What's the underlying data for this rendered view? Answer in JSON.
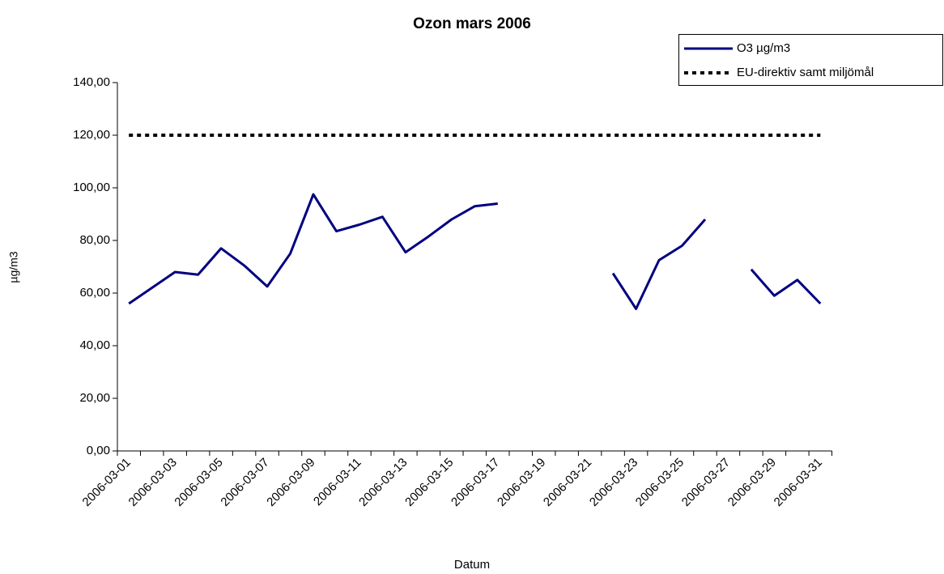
{
  "chart_data": {
    "type": "line",
    "title": "Ozon mars 2006",
    "xlabel": "Datum",
    "ylabel": "µg/m3",
    "categories": [
      "2006-03-01",
      null,
      "2006-03-03",
      null,
      "2006-03-05",
      null,
      "2006-03-07",
      null,
      "2006-03-09",
      null,
      "2006-03-11",
      null,
      "2006-03-13",
      null,
      "2006-03-15",
      null,
      "2006-03-17",
      null,
      "2006-03-19",
      null,
      "2006-03-21",
      null,
      "2006-03-23",
      null,
      "2006-03-25",
      null,
      "2006-03-27",
      null,
      "2006-03-29",
      null,
      "2006-03-31"
    ],
    "series": [
      {
        "name": "O3 µg/m3",
        "color": "#000080",
        "dash": "solid",
        "values": [
          56,
          62,
          68,
          67,
          77,
          70.5,
          62.5,
          75,
          97.5,
          83.5,
          86,
          89,
          75.5,
          81.5,
          88,
          93,
          94,
          null,
          null,
          null,
          null,
          67.5,
          54,
          72.5,
          78,
          88,
          null,
          69,
          59,
          65,
          56
        ]
      },
      {
        "name": "EU-direktiv samt miljömål",
        "color": "#000000",
        "dash": "dotted",
        "values": [
          120,
          120,
          120,
          120,
          120,
          120,
          120,
          120,
          120,
          120,
          120,
          120,
          120,
          120,
          120,
          120,
          120,
          120,
          120,
          120,
          120,
          120,
          120,
          120,
          120,
          120,
          120,
          120,
          120,
          120,
          120
        ]
      }
    ],
    "ylim": [
      0,
      140
    ],
    "yticks": [
      {
        "value": 0,
        "label": "0,00"
      },
      {
        "value": 20,
        "label": "20,00"
      },
      {
        "value": 40,
        "label": "40,00"
      },
      {
        "value": 60,
        "label": "60,00"
      },
      {
        "value": 80,
        "label": "80,00"
      },
      {
        "value": 100,
        "label": "100,00"
      },
      {
        "value": 120,
        "label": "120,00"
      },
      {
        "value": 140,
        "label": "140,00"
      }
    ],
    "legend": "top-right"
  }
}
